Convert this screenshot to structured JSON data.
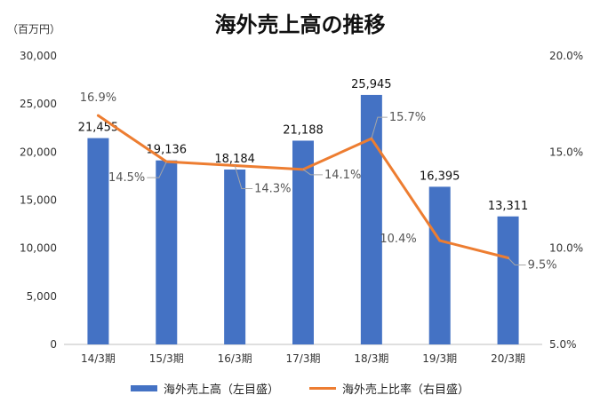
{
  "chart_data": {
    "type": "bar+line",
    "title": "海外売上高の推移",
    "y_unit_label": "（百万円）",
    "categories": [
      "14/3期",
      "15/3期",
      "16/3期",
      "17/3期",
      "18/3期",
      "19/3期",
      "20/3期"
    ],
    "series": [
      {
        "name": "海外売上高（左目盛）",
        "type": "bar",
        "axis": "left",
        "values": [
          21455,
          19136,
          18184,
          21188,
          25945,
          16395,
          13311
        ],
        "labels": [
          "21,455",
          "19,136",
          "18,184",
          "21,188",
          "25,945",
          "16,395",
          "13,311"
        ],
        "color": "#4472C4"
      },
      {
        "name": "海外売上比率（右目盛）",
        "type": "line",
        "axis": "right",
        "values": [
          16.9,
          14.5,
          14.3,
          14.1,
          15.7,
          10.4,
          9.5
        ],
        "labels": [
          "16.9%",
          "14.5%",
          "14.3%",
          "14.1%",
          "15.7%",
          "10.4%",
          "9.5%"
        ],
        "color": "#ED7D31"
      }
    ],
    "left_axis": {
      "ylim": [
        0,
        30000
      ],
      "ticks": [
        0,
        5000,
        10000,
        15000,
        20000,
        25000,
        30000
      ],
      "tick_labels": [
        "0",
        "5,000",
        "10,000",
        "15,000",
        "20,000",
        "25,000",
        "30,000"
      ]
    },
    "right_axis": {
      "ylim": [
        5,
        20
      ],
      "ticks": [
        5,
        10,
        15,
        20
      ],
      "tick_labels": [
        "5.0%",
        "10.0%",
        "15.0%",
        "20.0%"
      ]
    },
    "grid": false,
    "legend_position": "bottom"
  }
}
